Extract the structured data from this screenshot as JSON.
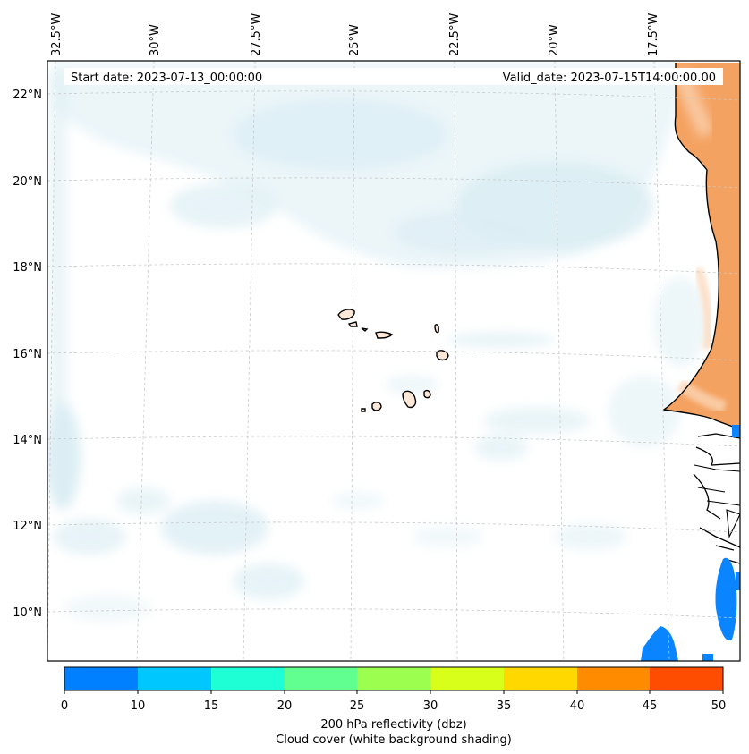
{
  "header": {
    "start_date": "Start date: 2023-07-13_00:00:00",
    "valid_date": "Valid_date: 2023-07-15T14:00:00.00"
  },
  "map": {
    "lon_labels": [
      "32.5°W",
      "30°W",
      "27.5°W",
      "25°W",
      "22.5°W",
      "20°W",
      "17.5°W"
    ],
    "lat_labels": [
      "22°N",
      "20°N",
      "18°N",
      "16°N",
      "14°N",
      "12°N",
      "10°N"
    ],
    "colors": {
      "cloud": "#d6ebf2",
      "land_high": "#f4a261",
      "land_light": "#fbd4b4",
      "reflectivity_low": "#0a84ff",
      "coast": "#000000",
      "grid": "#c8c8c8"
    }
  },
  "colorbar": {
    "ticks": [
      "0",
      "10",
      "15",
      "20",
      "25",
      "30",
      "35",
      "40",
      "45",
      "50"
    ],
    "colors": [
      "#0080ff",
      "#00c8ff",
      "#1effd6",
      "#60ff8f",
      "#9cff50",
      "#d8ff1a",
      "#ffd800",
      "#ff8c00",
      "#ff4d00"
    ],
    "label_line1": "200 hPa reflectivity (dbz)",
    "label_line2": "Cloud cover (white background shading)"
  }
}
